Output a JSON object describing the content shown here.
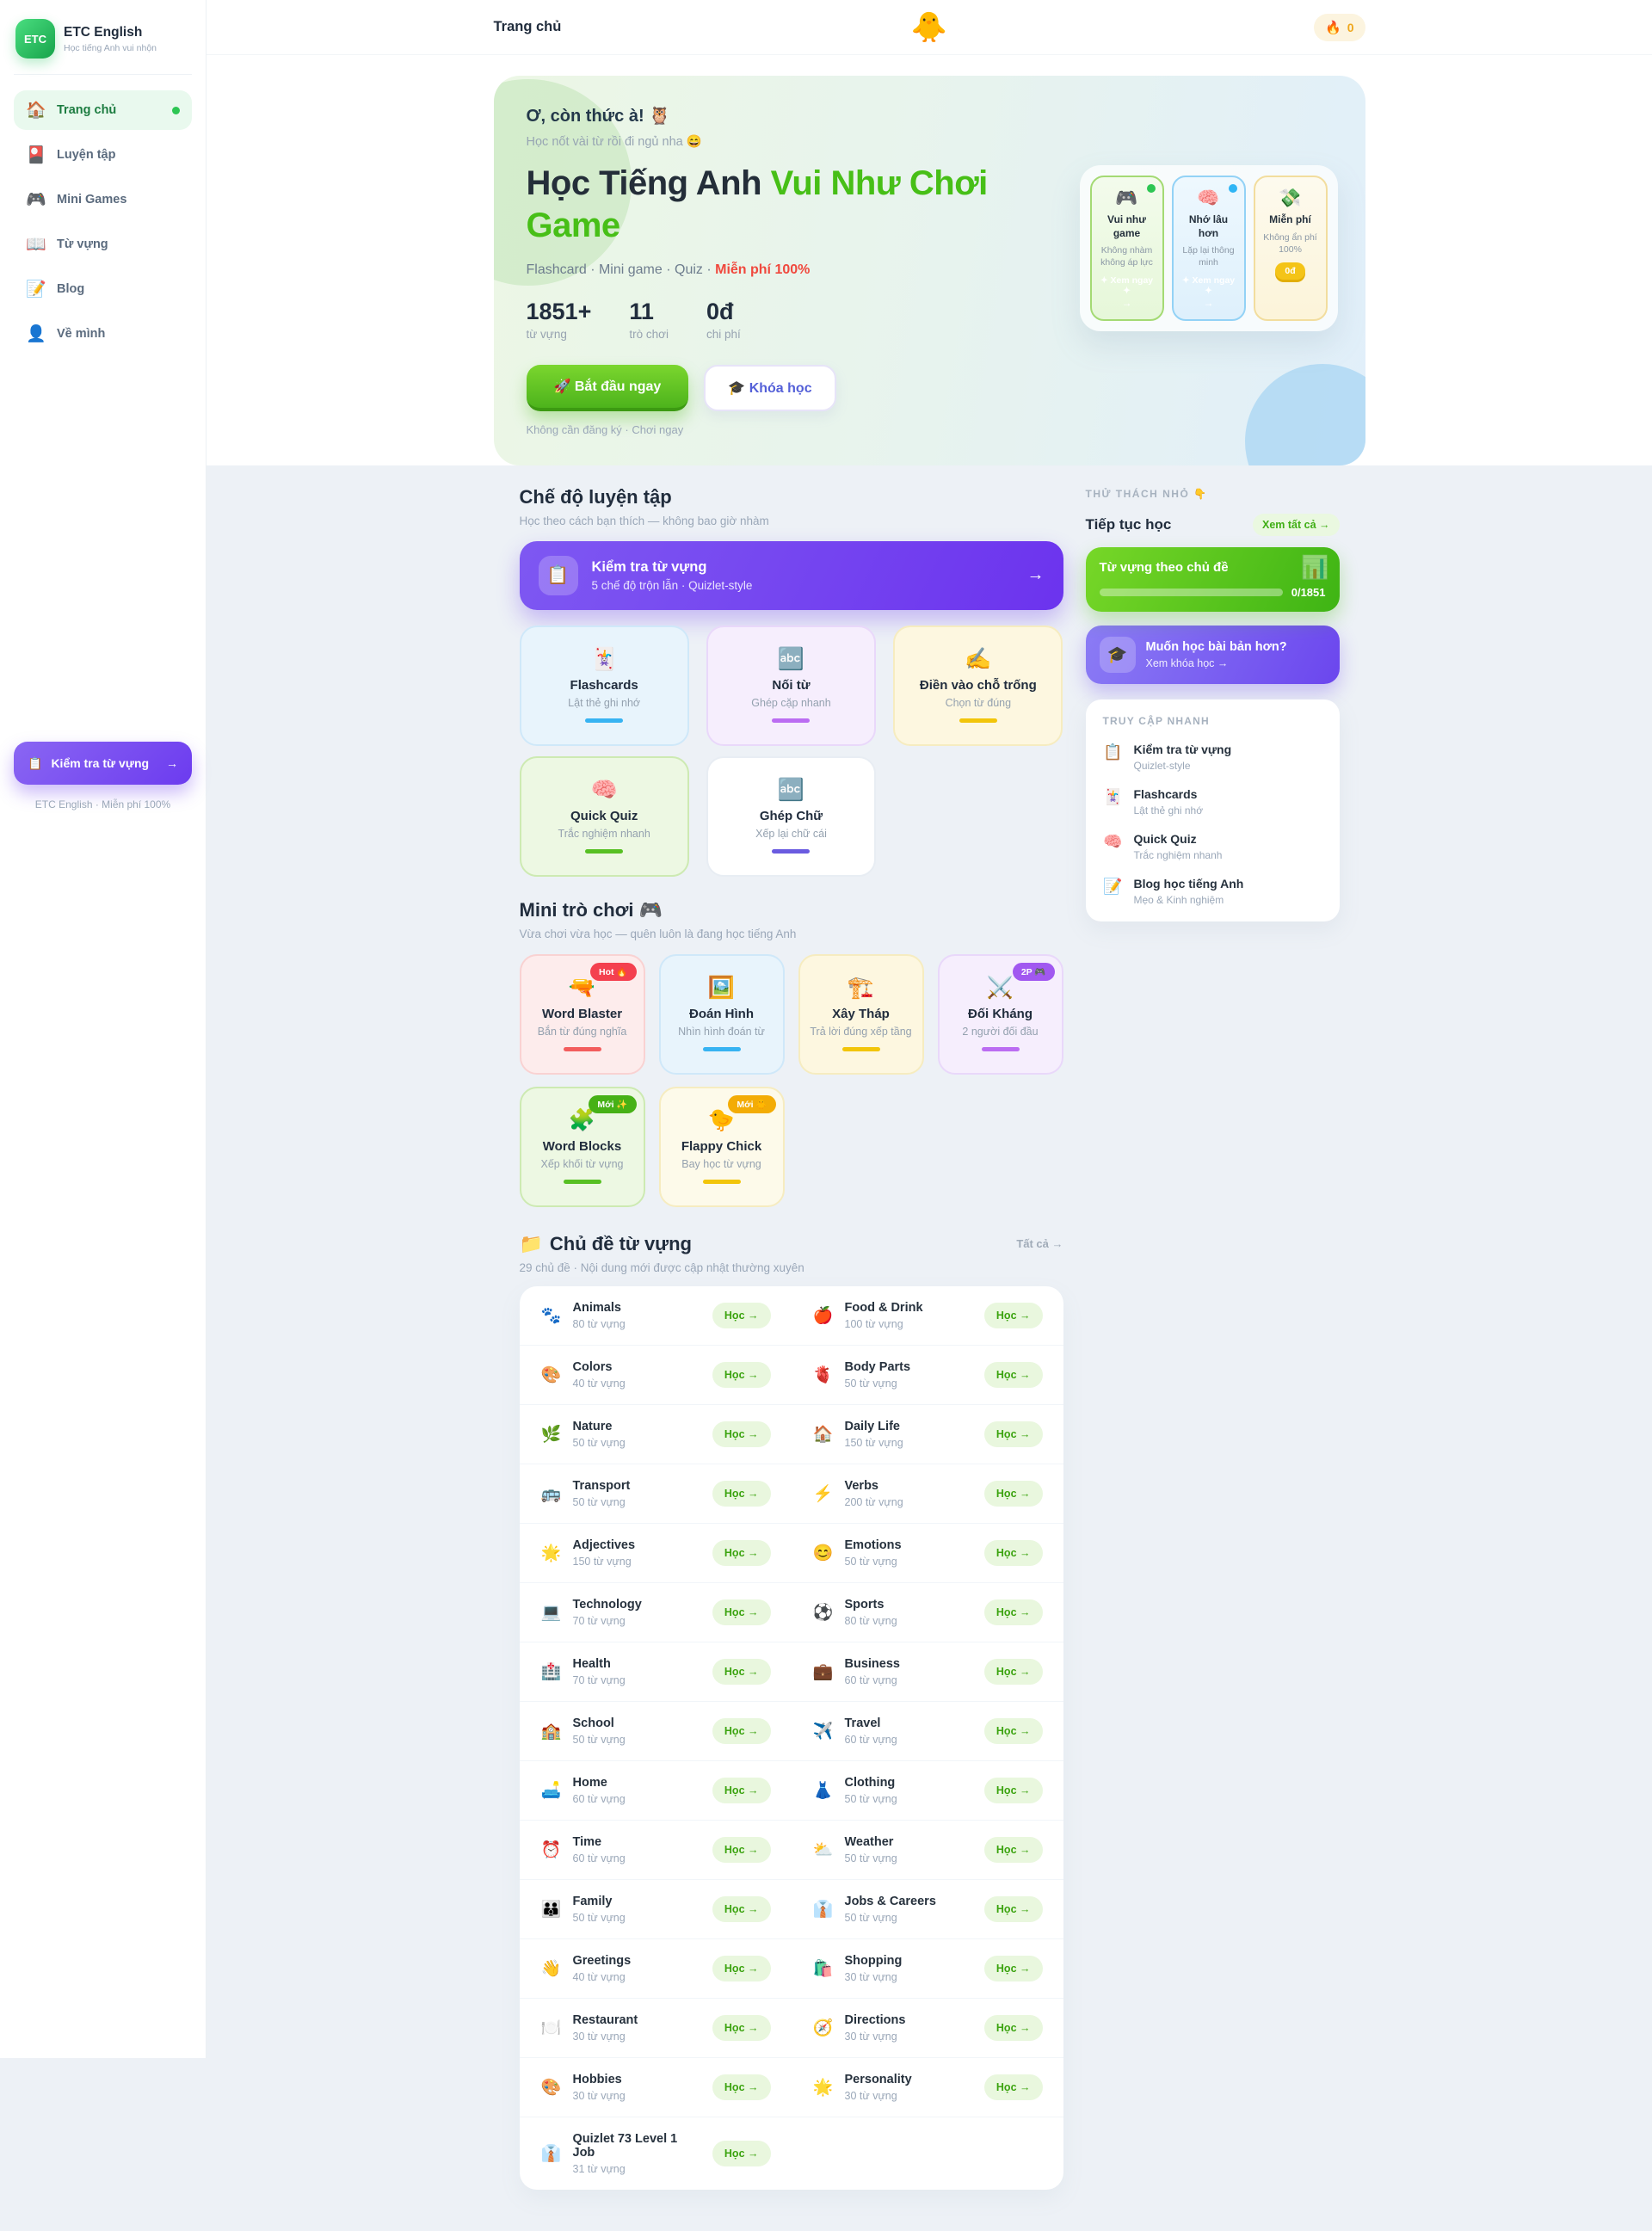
{
  "colors": {
    "brand_green": "#47bf17",
    "accent_purple": "#6c3bef",
    "accent_red": "#f0483d",
    "streak_orange": "#efa71c"
  },
  "sidebar": {
    "logo_text": "ETC",
    "title": "ETC English",
    "subtitle": "Học tiếng Anh vui nhộn",
    "nav": [
      {
        "icon": "🏠",
        "label": "Trang chủ",
        "active": "true"
      },
      {
        "icon": "🎴",
        "label": "Luyện tập",
        "active": "false"
      },
      {
        "icon": "🎮",
        "label": "Mini Games",
        "active": "false"
      },
      {
        "icon": "📖",
        "label": "Từ vựng",
        "active": "false"
      },
      {
        "icon": "📝",
        "label": "Blog",
        "active": "false"
      },
      {
        "icon": "👤",
        "label": "Về mình",
        "active": "false"
      }
    ],
    "cta": {
      "icon": "📋",
      "label": "Kiểm tra từ vựng",
      "arrow": "→"
    },
    "footer_note": "ETC English · Miễn phí 100%"
  },
  "topbar": {
    "title": "Trang chủ",
    "mascot": "🐥",
    "streak_icon": "🔥",
    "streak_count": "0"
  },
  "hero": {
    "badge": "Ơ, còn thức à! 🦉",
    "subtitle": "Học nốt vài từ rồi đi ngủ nha 😄",
    "title_dark": "Học Tiếng Anh ",
    "title_green": "Vui Như Chơi Game",
    "tagline_prefix": "Flashcard · Mini game · Quiz · ",
    "tagline_highlight": "Miễn phí 100%",
    "stats": [
      {
        "value": "1851+",
        "label": "từ vựng"
      },
      {
        "value": "11",
        "label": "trò chơi"
      },
      {
        "value": "0đ",
        "label": "chi phí"
      }
    ],
    "primary_cta": "🚀 Bắt đầu ngay",
    "secondary_cta": "🎓 Khóa học",
    "note": "Không cần đăng ký · Chơi ngay",
    "features": [
      {
        "icon": "🎮",
        "title": "Vui như game",
        "subtitle": "Không nhàm không áp lực",
        "theme": "green",
        "dot": "green",
        "cta": "✦ Xem ngay ✦",
        "cta_arrow": "→"
      },
      {
        "icon": "🧠",
        "title": "Nhớ lâu hơn",
        "subtitle": "Lặp lại thông minh",
        "theme": "blue",
        "dot": "blue",
        "cta": "✦ Xem ngay ✦",
        "cta_arrow": "→"
      },
      {
        "icon": "💸",
        "title": "Miễn phí",
        "subtitle": "Không ẩn phí 100%",
        "theme": "yellow",
        "price": "0đ"
      }
    ]
  },
  "practice": {
    "heading": "Chế độ luyện tập",
    "subheading": "Học theo cách bạn thích — không bao giờ nhàm",
    "banner": {
      "icon": "📋",
      "title": "Kiểm tra từ vựng",
      "subtitle": "5 chế độ trộn lẫn · Quizlet-style",
      "arrow": "→"
    },
    "modes": [
      {
        "icon": "🃏",
        "title": "Flashcards",
        "subtitle": "Lật thẻ ghi nhớ",
        "theme": "blue"
      },
      {
        "icon": "🔤",
        "title": "Nối từ",
        "subtitle": "Ghép cặp nhanh",
        "theme": "purple"
      },
      {
        "icon": "✍️",
        "title": "Điền vào chỗ trống",
        "subtitle": "Chọn từ đúng",
        "theme": "yellow"
      },
      {
        "icon": "🧠",
        "title": "Quick Quiz",
        "subtitle": "Trắc nghiệm nhanh",
        "theme": "green"
      },
      {
        "icon": "🔤",
        "title": "Ghép Chữ",
        "subtitle": "Xếp lại chữ cái",
        "theme": "white"
      }
    ]
  },
  "games": {
    "heading": "Mini trò chơi 🎮",
    "subheading": "Vừa chơi vừa học — quên luôn là đang học tiếng Anh",
    "items": [
      {
        "icon": "🔫",
        "title": "Word Blaster",
        "subtitle": "Bắn từ đúng nghĩa",
        "theme": "red",
        "badge": {
          "label": "Hot 🔥",
          "theme": "red"
        }
      },
      {
        "icon": "🖼️",
        "title": "Đoán Hình",
        "subtitle": "Nhìn hình đoán từ",
        "theme": "blue"
      },
      {
        "icon": "🏗️",
        "title": "Xây Tháp",
        "subtitle": "Trả lời đúng xếp tầng",
        "theme": "yellow"
      },
      {
        "icon": "⚔️",
        "title": "Đối Kháng",
        "subtitle": "2 người đối đầu",
        "theme": "purple",
        "badge": {
          "label": "2P 🎮",
          "theme": "purple"
        }
      },
      {
        "icon": "🧩",
        "title": "Word Blocks",
        "subtitle": "Xếp khối từ vựng",
        "theme": "green",
        "badge": {
          "label": "Mới ✨",
          "theme": "green"
        }
      },
      {
        "icon": "🐤",
        "title": "Flappy Chick",
        "subtitle": "Bay học từ vựng",
        "theme": "cream",
        "badge": {
          "label": "Mới 🐥",
          "theme": "yellow"
        }
      }
    ]
  },
  "right_rail": {
    "eyebrow": "THỬ THÁCH NHỎ 👇",
    "continue_heading": "Tiếp tục học",
    "see_all": "Xem tất cả →",
    "progress_card": {
      "title": "Từ vựng theo chủ đề",
      "chart_icon": "📊",
      "value": "0/1851"
    },
    "course_card": {
      "icon": "🎓",
      "title": "Muốn học bài bản hơn?",
      "subtitle": "Xem khóa học →"
    },
    "quick_access": {
      "label": "TRUY CẬP NHANH",
      "items": [
        {
          "icon": "📋",
          "title": "Kiểm tra từ vựng",
          "subtitle": "Quizlet-style"
        },
        {
          "icon": "🃏",
          "title": "Flashcards",
          "subtitle": "Lật thẻ ghi nhớ"
        },
        {
          "icon": "🧠",
          "title": "Quick Quiz",
          "subtitle": "Trắc nghiệm nhanh"
        },
        {
          "icon": "📝",
          "title": "Blog học tiếng Anh",
          "subtitle": "Mẹo & Kinh nghiệm"
        }
      ]
    }
  },
  "topics": {
    "heading_icon": "📁",
    "heading": "Chủ đề từ vựng",
    "link": "Tất cả →",
    "subheading": "29 chủ đề · Nội dung mới được cập nhật thường xuyên",
    "items": [
      {
        "icon": "🐾",
        "name": "Animals",
        "count": "80 từ vựng",
        "learn": "Học →"
      },
      {
        "icon": "🍎",
        "name": "Food & Drink",
        "count": "100 từ vựng",
        "learn": "Học →"
      },
      {
        "icon": "🎨",
        "name": "Colors",
        "count": "40 từ vựng",
        "learn": "Học →"
      },
      {
        "icon": "🫀",
        "name": "Body Parts",
        "count": "50 từ vựng",
        "learn": "Học →"
      },
      {
        "icon": "🌿",
        "name": "Nature",
        "count": "50 từ vựng",
        "learn": "Học →"
      },
      {
        "icon": "🏠",
        "name": "Daily Life",
        "count": "150 từ vựng",
        "learn": "Học →"
      },
      {
        "icon": "🚌",
        "name": "Transport",
        "count": "50 từ vựng",
        "learn": "Học →"
      },
      {
        "icon": "⚡",
        "name": "Verbs",
        "count": "200 từ vựng",
        "learn": "Học →"
      },
      {
        "icon": "🌟",
        "name": "Adjectives",
        "count": "150 từ vựng",
        "learn": "Học →"
      },
      {
        "icon": "😊",
        "name": "Emotions",
        "count": "50 từ vựng",
        "learn": "Học →"
      },
      {
        "icon": "💻",
        "name": "Technology",
        "count": "70 từ vựng",
        "learn": "Học →"
      },
      {
        "icon": "⚽",
        "name": "Sports",
        "count": "80 từ vựng",
        "learn": "Học →"
      },
      {
        "icon": "🏥",
        "name": "Health",
        "count": "70 từ vựng",
        "learn": "Học →"
      },
      {
        "icon": "💼",
        "name": "Business",
        "count": "60 từ vựng",
        "learn": "Học →"
      },
      {
        "icon": "🏫",
        "name": "School",
        "count": "50 từ vựng",
        "learn": "Học →"
      },
      {
        "icon": "✈️",
        "name": "Travel",
        "count": "60 từ vựng",
        "learn": "Học →"
      },
      {
        "icon": "🛋️",
        "name": "Home",
        "count": "60 từ vựng",
        "learn": "Học →"
      },
      {
        "icon": "👗",
        "name": "Clothing",
        "count": "50 từ vựng",
        "learn": "Học →"
      },
      {
        "icon": "⏰",
        "name": "Time",
        "count": "60 từ vựng",
        "learn": "Học →"
      },
      {
        "icon": "⛅",
        "name": "Weather",
        "count": "50 từ vựng",
        "learn": "Học →"
      },
      {
        "icon": "👪",
        "name": "Family",
        "count": "50 từ vựng",
        "learn": "Học →"
      },
      {
        "icon": "👔",
        "name": "Jobs & Careers",
        "count": "50 từ vựng",
        "learn": "Học →"
      },
      {
        "icon": "👋",
        "name": "Greetings",
        "count": "40 từ vựng",
        "learn": "Học →"
      },
      {
        "icon": "🛍️",
        "name": "Shopping",
        "count": "30 từ vựng",
        "learn": "Học →"
      },
      {
        "icon": "🍽️",
        "name": "Restaurant",
        "count": "30 từ vựng",
        "learn": "Học →"
      },
      {
        "icon": "🧭",
        "name": "Directions",
        "count": "30 từ vựng",
        "learn": "Học →"
      },
      {
        "icon": "🎨",
        "name": "Hobbies",
        "count": "30 từ vựng",
        "learn": "Học →"
      },
      {
        "icon": "🌟",
        "name": "Personality",
        "count": "30 từ vựng",
        "learn": "Học →"
      },
      {
        "icon": "👔",
        "name": "Quizlet 73 Level 1 Job",
        "count": "31 từ vựng",
        "learn": "Học →"
      }
    ]
  }
}
